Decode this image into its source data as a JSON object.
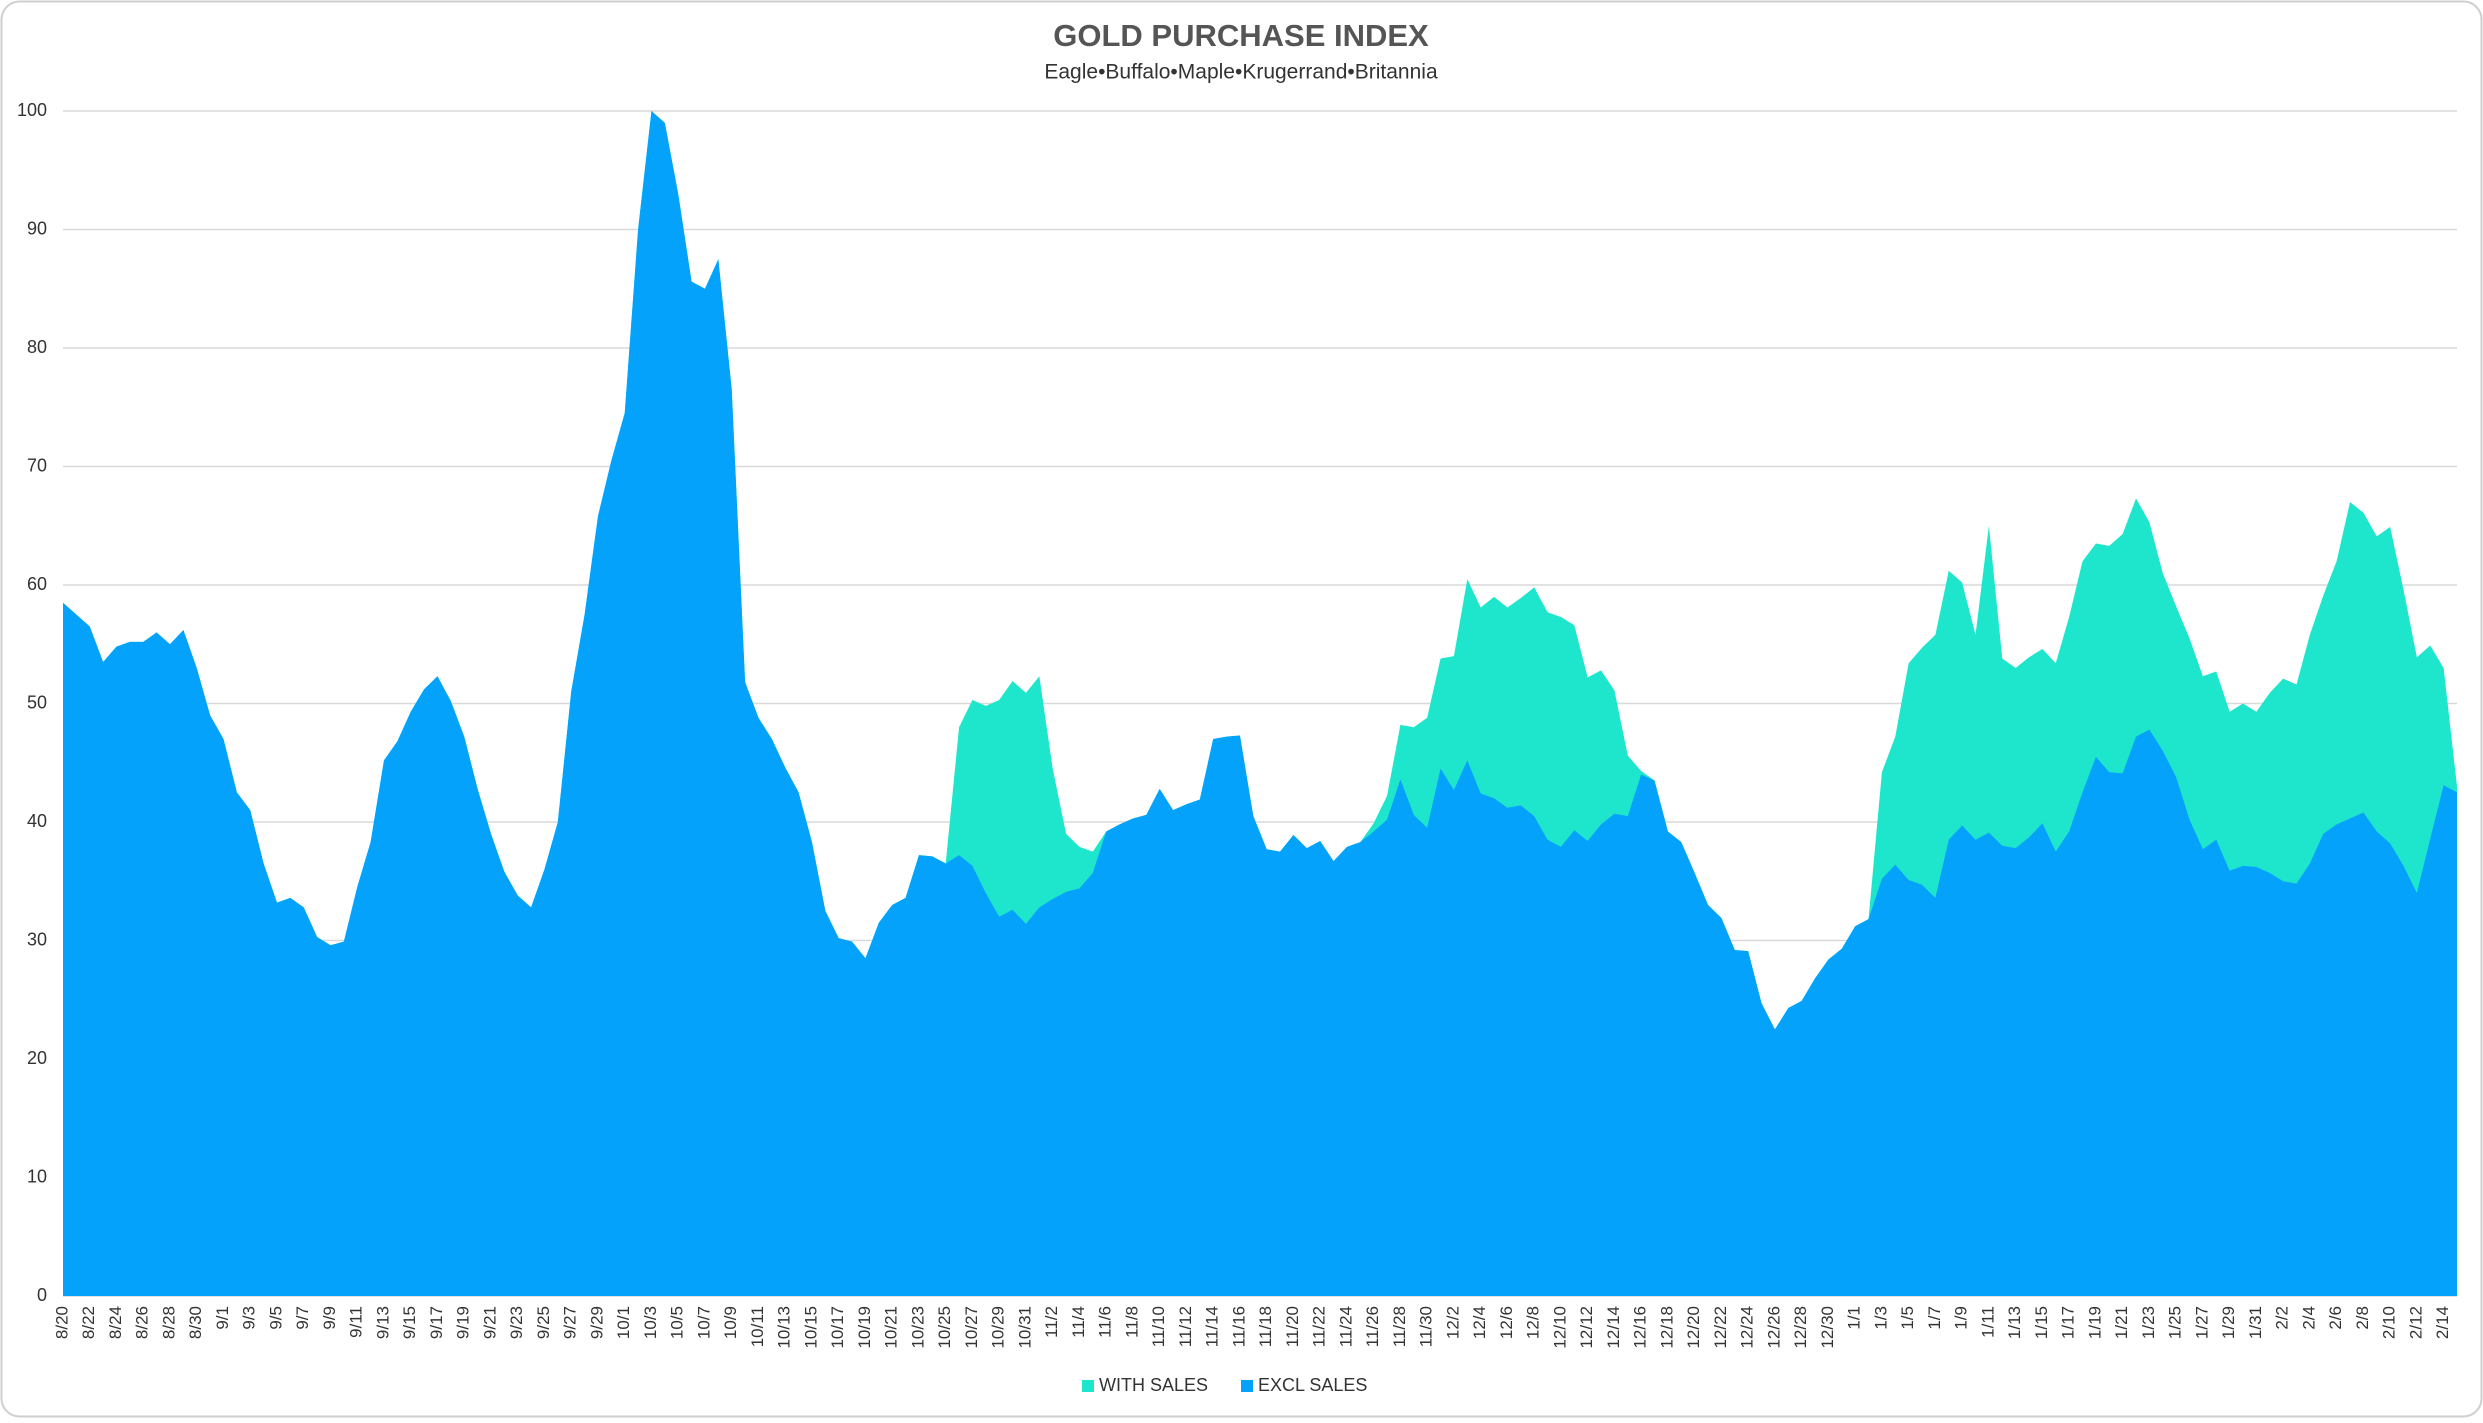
{
  "chart_data": {
    "type": "area",
    "title": "GOLD PURCHASE  INDEX",
    "subtitle": "Eagle•Buffalo•Maple•Krugerrand•Britannia",
    "categories": [
      "8/20",
      null,
      "8/22",
      null,
      "8/24",
      null,
      "8/26",
      null,
      "8/28",
      null,
      "8/30",
      null,
      "9/1",
      null,
      "9/3",
      null,
      "9/5",
      null,
      "9/7",
      null,
      "9/9",
      null,
      "9/11",
      null,
      "9/13",
      null,
      "9/15",
      null,
      "9/17",
      null,
      "9/19",
      null,
      "9/21",
      null,
      "9/23",
      null,
      "9/25",
      null,
      "9/27",
      null,
      "9/29",
      null,
      "10/1",
      null,
      "10/3",
      null,
      "10/5",
      null,
      "10/7",
      null,
      "10/9",
      null,
      "10/11",
      null,
      "10/13",
      null,
      "10/15",
      null,
      "10/17",
      null,
      "10/19",
      null,
      "10/21",
      null,
      "10/23",
      null,
      "10/25",
      null,
      "10/27",
      null,
      "10/29",
      null,
      "10/31",
      null,
      "11/2",
      null,
      "11/4",
      null,
      "11/6",
      null,
      "11/8",
      null,
      "11/10",
      null,
      "11/12",
      null,
      "11/14",
      null,
      "11/16",
      null,
      "11/18",
      null,
      "11/20",
      null,
      "11/22",
      null,
      "11/24",
      null,
      "11/26",
      null,
      "11/28",
      null,
      "11/30",
      null,
      "12/2",
      null,
      "12/4",
      null,
      "12/6",
      null,
      "12/8",
      null,
      "12/10",
      null,
      "12/12",
      null,
      "12/14",
      null,
      "12/16",
      null,
      "12/18",
      null,
      "12/20",
      null,
      "12/22",
      null,
      "12/24",
      null,
      "12/26",
      null,
      "12/28",
      null,
      "12/30",
      null,
      "1/1",
      null,
      "1/3",
      null,
      "1/5",
      null,
      "1/7",
      null,
      "1/9",
      null,
      "1/11",
      null,
      "1/13",
      null,
      "1/15",
      null,
      "1/17",
      null,
      "1/19",
      null,
      "1/21",
      null,
      "1/23",
      null,
      "1/25",
      null,
      "1/27",
      null,
      "1/29",
      null,
      "1/31",
      null,
      "2/2",
      null,
      "2/4",
      null,
      "2/6",
      null,
      "2/8",
      null,
      "2/10",
      null,
      "2/12",
      null,
      "2/14",
      null
    ],
    "series": [
      {
        "name": "WITH SALES",
        "color": "#1de6cc",
        "values": [
          58.5,
          57.5,
          56.5,
          53.5,
          54.8,
          55.2,
          55.2,
          56,
          55,
          56.2,
          53,
          49,
          47,
          42.5,
          41,
          36.5,
          33.2,
          33.6,
          32.8,
          30.3,
          29.6,
          29.9,
          34.5,
          38.3,
          45.2,
          46.8,
          49.3,
          51.2,
          52.3,
          50.2,
          47.2,
          42.8,
          39,
          35.8,
          33.8,
          32.8,
          36,
          40,
          51,
          57.5,
          65.8,
          70.5,
          74.5,
          90,
          100,
          99,
          93,
          85.6,
          85,
          87.5,
          76.5,
          51.8,
          48.8,
          47,
          44.6,
          42.5,
          38.3,
          32.5,
          30.2,
          29.9,
          28.5,
          31.5,
          33,
          33.6,
          37.2,
          37.1,
          36.5,
          48,
          50.3,
          49.8,
          50.3,
          51.9,
          50.9,
          52.3,
          44.5,
          39,
          37.9,
          37.5,
          39.2,
          39.8,
          40.3,
          40.6,
          42.8,
          41,
          41.5,
          41.9,
          47,
          47.2,
          47.3,
          40.5,
          37.7,
          37.5,
          38.9,
          37.8,
          38.4,
          36.7,
          37.9,
          38.3,
          39.9,
          42.2,
          48.2,
          48,
          48.8,
          53.8,
          54,
          60.5,
          58.1,
          59,
          58.1,
          58.9,
          59.8,
          57.7,
          57.3,
          56.6,
          52.2,
          52.8,
          51.1,
          45.6,
          44.3,
          43.5,
          39.2,
          38.3,
          35.7,
          33,
          31.9,
          29.2,
          29.1,
          24.7,
          22.5,
          24.3,
          24.9,
          26.8,
          28.4,
          29.3,
          31.2,
          31.8,
          44.2,
          47.2,
          53.4,
          54.7,
          55.8,
          61.2,
          60.2,
          55.8,
          65,
          53.8,
          53,
          53.9,
          54.6,
          53.4,
          57.3,
          62,
          63.5,
          63.3,
          64.3,
          67.3,
          65.3,
          61,
          58.2,
          55.5,
          52.3,
          52.7,
          49.3,
          50,
          49.3,
          50.9,
          52.1,
          51.6,
          55.8,
          59.1,
          62,
          67,
          66.1,
          64.1,
          64.9,
          59.6,
          53.9,
          54.9,
          53,
          43
        ]
      },
      {
        "name": "EXCL SALES",
        "color": "#04a2fb",
        "values": [
          58.5,
          57.5,
          56.5,
          53.5,
          54.8,
          55.2,
          55.2,
          56,
          55,
          56.2,
          53,
          49,
          47,
          42.5,
          41,
          36.5,
          33.2,
          33.6,
          32.8,
          30.3,
          29.6,
          29.9,
          34.5,
          38.3,
          45.2,
          46.8,
          49.3,
          51.2,
          52.3,
          50.2,
          47.2,
          42.8,
          39,
          35.8,
          33.8,
          32.8,
          36,
          40,
          51,
          57.5,
          65.8,
          70.5,
          74.5,
          90,
          100,
          99,
          93,
          85.6,
          85,
          87.5,
          76.5,
          51.8,
          48.8,
          47,
          44.6,
          42.5,
          38.3,
          32.5,
          30.2,
          29.9,
          28.5,
          31.5,
          33,
          33.6,
          37.2,
          37.1,
          36.5,
          37.2,
          36.3,
          34,
          32,
          32.6,
          31.4,
          32.8,
          33.5,
          34.1,
          34.4,
          35.7,
          39.2,
          39.8,
          40.3,
          40.6,
          42.8,
          41,
          41.5,
          41.9,
          47,
          47.2,
          47.3,
          40.5,
          37.7,
          37.5,
          38.9,
          37.8,
          38.4,
          36.7,
          37.9,
          38.3,
          39.2,
          40.2,
          43.6,
          40.6,
          39.5,
          44.5,
          42.7,
          45.2,
          42.4,
          42,
          41.2,
          41.4,
          40.5,
          38.5,
          37.9,
          39.3,
          38.4,
          39.8,
          40.7,
          40.5,
          44,
          43.5,
          39.2,
          38.3,
          35.7,
          33,
          31.9,
          29.2,
          29.1,
          24.7,
          22.5,
          24.3,
          24.9,
          26.8,
          28.4,
          29.3,
          31.2,
          31.8,
          35.2,
          36.4,
          35.1,
          34.7,
          33.6,
          38.5,
          39.7,
          38.5,
          39.1,
          38,
          37.8,
          38.7,
          39.9,
          37.5,
          39.2,
          42.5,
          45.5,
          44.2,
          44.1,
          47.2,
          47.8,
          46,
          43.8,
          40.2,
          37.7,
          38.5,
          35.9,
          36.3,
          36.2,
          35.7,
          35,
          34.8,
          36.5,
          39,
          39.8,
          40.3,
          40.8,
          39.2,
          38.2,
          36.3,
          34,
          38.6,
          43.1,
          42.5
        ]
      }
    ],
    "ylim": [
      0,
      100
    ],
    "yticks": [
      0,
      10,
      20,
      30,
      40,
      50,
      60,
      70,
      80,
      90,
      100
    ],
    "grid": true,
    "legend": "bottom"
  }
}
